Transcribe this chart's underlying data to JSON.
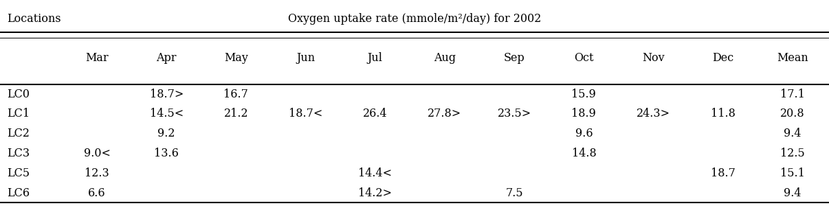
{
  "title_left": "Locations",
  "title_right": "Oxygen uptake rate (mmole/m²/day) for 2002",
  "col_headers": [
    "",
    "Mar",
    "Apr",
    "May",
    "Jun",
    "Jul",
    "Aug",
    "Sep",
    "Oct",
    "Nov",
    "Dec",
    "Mean"
  ],
  "rows": [
    [
      "LC0",
      "",
      "18.7>",
      "16.7",
      "",
      "",
      "",
      "",
      "15.9",
      "",
      "",
      "17.1"
    ],
    [
      "LC1",
      "",
      "14.5<",
      "21.2",
      "18.7<",
      "26.4",
      "27.8>",
      "23.5>",
      "18.9",
      "24.3>",
      "11.8",
      "20.8"
    ],
    [
      "LC2",
      "",
      "9.2",
      "",
      "",
      "",
      "",
      "",
      "9.6",
      "",
      "",
      "9.4"
    ],
    [
      "LC3",
      "9.0<",
      "13.6",
      "",
      "",
      "",
      "",
      "",
      "14.8",
      "",
      "",
      "12.5"
    ],
    [
      "LC5",
      "12.3",
      "",
      "",
      "",
      "14.4<",
      "",
      "",
      "",
      "",
      "18.7",
      "15.1"
    ],
    [
      "LC6",
      "6.6",
      "",
      "",
      "",
      "14.2>",
      "",
      "7.5",
      "",
      "",
      "",
      "9.4"
    ]
  ],
  "background_color": "#ffffff",
  "text_color": "#000000",
  "font_size": 11.5
}
